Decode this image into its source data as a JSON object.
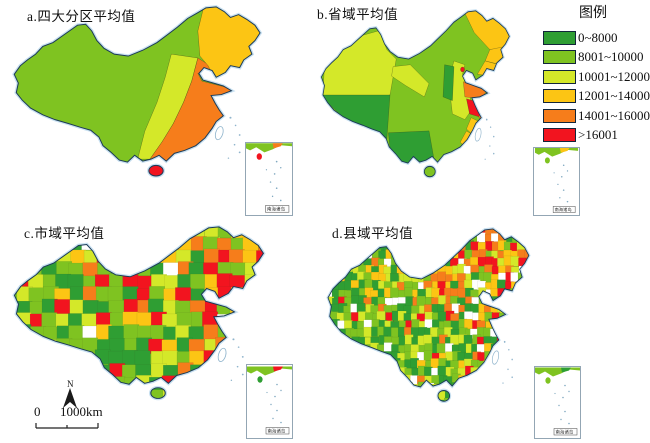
{
  "figure": {
    "description_domain": "choropleth maps of China at four aggregation levels"
  },
  "panels": [
    {
      "id": "a",
      "title": "a.四大分区平均值"
    },
    {
      "id": "b",
      "title": "b.省域平均值"
    },
    {
      "id": "c",
      "title": "c.市域平均值"
    },
    {
      "id": "d",
      "title": "d.县域平均值"
    }
  ],
  "legend": {
    "title": "图例",
    "items": [
      {
        "label": "0~8000",
        "color": "#2f9e33"
      },
      {
        "label": "8001~10000",
        "color": "#7fc321"
      },
      {
        "label": "10001~12000",
        "color": "#d4e829"
      },
      {
        "label": "12001~14000",
        "color": "#fcc514"
      },
      {
        "label": "14001~16000",
        "color": "#f67d1b"
      },
      {
        "label": ">16001",
        "color": "#f2141f"
      }
    ]
  },
  "map_furniture": {
    "north_label": "N",
    "scale_zero": "0",
    "scale_label": "1000km",
    "inset_label": "南海诸岛"
  },
  "panel_a_region_classes": {
    "west": "8001~10000",
    "northeast": "12001~14000",
    "central_belt": "10001~12000",
    "east_coast_belt": "14001~16000",
    "hainan": ">16001"
  }
}
